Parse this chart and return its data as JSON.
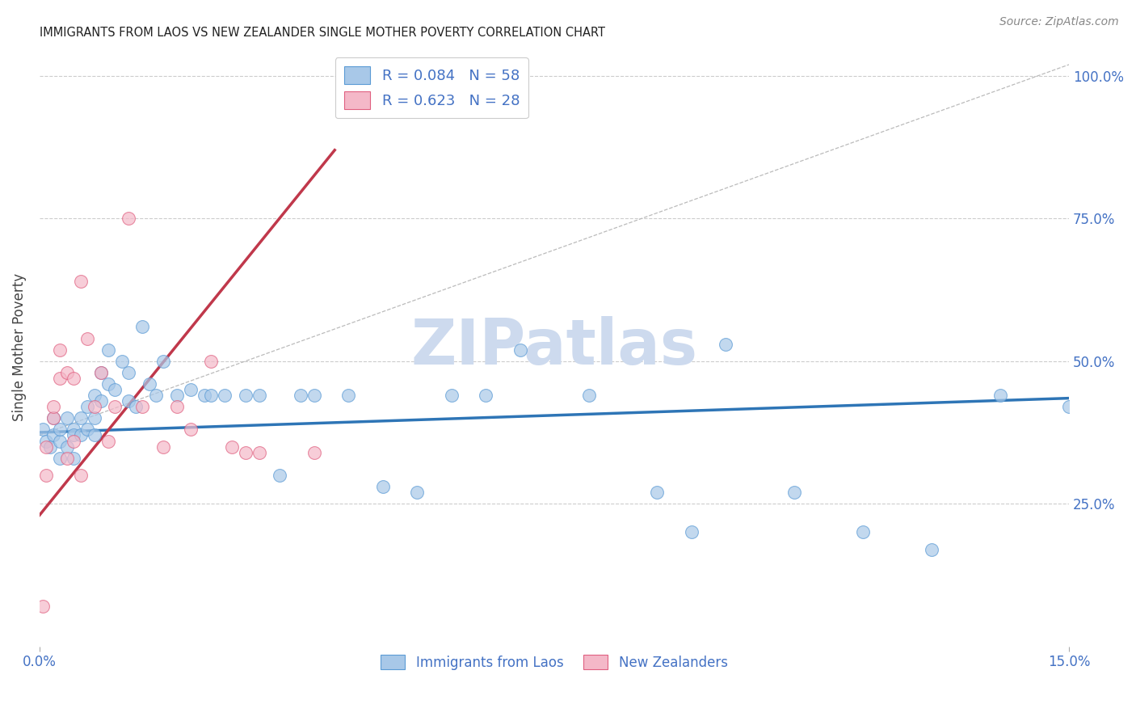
{
  "title": "IMMIGRANTS FROM LAOS VS NEW ZEALANDER SINGLE MOTHER POVERTY CORRELATION CHART",
  "source": "Source: ZipAtlas.com",
  "ylabel": "Single Mother Poverty",
  "legend_label_blue": "Immigrants from Laos",
  "legend_label_pink": "New Zealanders",
  "R_blue": 0.084,
  "N_blue": 58,
  "R_pink": 0.623,
  "N_pink": 28,
  "xlim": [
    0.0,
    0.15
  ],
  "ylim": [
    0.0,
    1.05
  ],
  "ytick_labels": [
    "25.0%",
    "50.0%",
    "75.0%",
    "100.0%"
  ],
  "ytick_values": [
    0.25,
    0.5,
    0.75,
    1.0
  ],
  "color_blue": "#a8c8e8",
  "color_blue_edge": "#5b9bd5",
  "color_blue_line": "#2e75b6",
  "color_pink": "#f4b8c8",
  "color_pink_edge": "#e06080",
  "color_pink_line": "#c0384b",
  "color_watermark": "#cddaee",
  "blue_x": [
    0.0005,
    0.001,
    0.0015,
    0.002,
    0.002,
    0.003,
    0.003,
    0.003,
    0.004,
    0.004,
    0.005,
    0.005,
    0.005,
    0.006,
    0.006,
    0.007,
    0.007,
    0.008,
    0.008,
    0.008,
    0.009,
    0.009,
    0.01,
    0.01,
    0.011,
    0.012,
    0.013,
    0.013,
    0.014,
    0.015,
    0.016,
    0.017,
    0.018,
    0.02,
    0.022,
    0.024,
    0.025,
    0.027,
    0.03,
    0.032,
    0.035,
    0.038,
    0.04,
    0.045,
    0.05,
    0.055,
    0.06,
    0.065,
    0.07,
    0.08,
    0.09,
    0.095,
    0.1,
    0.11,
    0.12,
    0.13,
    0.14,
    0.15
  ],
  "blue_y": [
    0.38,
    0.36,
    0.35,
    0.4,
    0.37,
    0.36,
    0.33,
    0.38,
    0.35,
    0.4,
    0.38,
    0.37,
    0.33,
    0.4,
    0.37,
    0.42,
    0.38,
    0.44,
    0.4,
    0.37,
    0.48,
    0.43,
    0.46,
    0.52,
    0.45,
    0.5,
    0.48,
    0.43,
    0.42,
    0.56,
    0.46,
    0.44,
    0.5,
    0.44,
    0.45,
    0.44,
    0.44,
    0.44,
    0.44,
    0.44,
    0.3,
    0.44,
    0.44,
    0.44,
    0.28,
    0.27,
    0.44,
    0.44,
    0.52,
    0.44,
    0.27,
    0.2,
    0.53,
    0.27,
    0.2,
    0.17,
    0.44,
    0.42
  ],
  "pink_x": [
    0.0005,
    0.001,
    0.001,
    0.002,
    0.002,
    0.003,
    0.003,
    0.004,
    0.004,
    0.005,
    0.005,
    0.006,
    0.006,
    0.007,
    0.008,
    0.009,
    0.01,
    0.011,
    0.013,
    0.015,
    0.018,
    0.02,
    0.022,
    0.025,
    0.028,
    0.03,
    0.032,
    0.04
  ],
  "pink_y": [
    0.07,
    0.3,
    0.35,
    0.4,
    0.42,
    0.47,
    0.52,
    0.33,
    0.48,
    0.47,
    0.36,
    0.64,
    0.3,
    0.54,
    0.42,
    0.48,
    0.36,
    0.42,
    0.75,
    0.42,
    0.35,
    0.42,
    0.38,
    0.5,
    0.35,
    0.34,
    0.34,
    0.34
  ],
  "blue_trend_x": [
    0.0,
    0.15
  ],
  "blue_trend_y": [
    0.375,
    0.435
  ],
  "pink_trend_x": [
    0.0,
    0.043
  ],
  "pink_trend_y": [
    0.23,
    0.87
  ]
}
